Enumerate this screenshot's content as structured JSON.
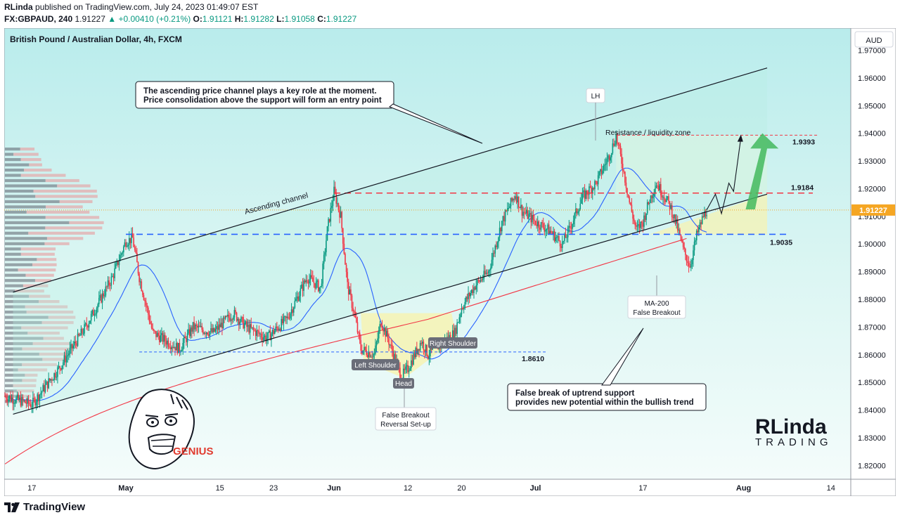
{
  "header": {
    "publisher": "RLinda",
    "published_text": "published on TradingView.com, July 24, 2023 01:49:07 EST",
    "symbol": "FX:GBPAUD, 240",
    "last": "1.91227",
    "change": "+0.00410 (+0.21%)",
    "o_label": "O:",
    "o": "1.91121",
    "h_label": "H:",
    "h": "1.91282",
    "l_label": "L:",
    "l": "1.91058",
    "c_label": "C:",
    "c": "1.91227"
  },
  "chart_title": "British Pound / Australian Dollar, 4h, FXCM",
  "currency_label": "AUD",
  "footer": {
    "brand": "TradingView"
  },
  "colors": {
    "up": "#089981",
    "down": "#f23645",
    "ma50": "#2962ff",
    "ma200": "#f23645",
    "price_tag": "#f5a623"
  },
  "chart_data": {
    "type": "candlestick",
    "ylim": [
      1.815,
      1.978
    ],
    "y_ticks": [
      "1.97000",
      "1.96000",
      "1.95000",
      "1.94000",
      "1.93000",
      "1.92000",
      "1.91000",
      "1.90000",
      "1.89000",
      "1.88000",
      "1.87000",
      "1.86000",
      "1.85000",
      "1.84000",
      "1.83000",
      "1.82000"
    ],
    "x_ticks": [
      {
        "label": "17",
        "day": -14
      },
      {
        "label": "May",
        "day": 0
      },
      {
        "label": "15",
        "day": 14
      },
      {
        "label": "23",
        "day": 22
      },
      {
        "label": "Jun",
        "day": 31
      },
      {
        "label": "12",
        "day": 42
      },
      {
        "label": "20",
        "day": 50
      },
      {
        "label": "Jul",
        "day": 61
      },
      {
        "label": "17",
        "day": 77
      },
      {
        "label": "Aug",
        "day": 92
      },
      {
        "label": "14",
        "day": 105
      }
    ],
    "price_key_points": [
      [
        -18,
        1.845
      ],
      [
        -14,
        1.842
      ],
      [
        -10,
        1.855
      ],
      [
        -6,
        1.87
      ],
      [
        -2,
        1.888
      ],
      [
        0,
        1.901
      ],
      [
        1,
        1.902
      ],
      [
        2,
        1.888
      ],
      [
        4,
        1.868
      ],
      [
        8,
        1.862
      ],
      [
        10,
        1.87
      ],
      [
        13,
        1.868
      ],
      [
        16,
        1.875
      ],
      [
        18,
        1.87
      ],
      [
        21,
        1.866
      ],
      [
        24,
        1.873
      ],
      [
        27,
        1.888
      ],
      [
        29,
        1.884
      ],
      [
        30,
        1.905
      ],
      [
        31,
        1.919
      ],
      [
        32,
        1.91
      ],
      [
        33,
        1.885
      ],
      [
        34,
        1.875
      ],
      [
        35,
        1.862
      ],
      [
        37,
        1.86
      ],
      [
        38,
        1.872
      ],
      [
        39,
        1.866
      ],
      [
        41,
        1.852
      ],
      [
        42,
        1.855
      ],
      [
        44,
        1.865
      ],
      [
        45,
        1.86
      ],
      [
        47,
        1.864
      ],
      [
        49,
        1.868
      ],
      [
        50,
        1.877
      ],
      [
        52,
        1.885
      ],
      [
        54,
        1.89
      ],
      [
        56,
        1.908
      ],
      [
        58,
        1.918
      ],
      [
        59,
        1.912
      ],
      [
        61,
        1.908
      ],
      [
        63,
        1.905
      ],
      [
        65,
        1.9
      ],
      [
        66,
        1.905
      ],
      [
        68,
        1.917
      ],
      [
        70,
        1.922
      ],
      [
        72,
        1.932
      ],
      [
        73,
        1.939
      ],
      [
        74,
        1.928
      ],
      [
        75,
        1.915
      ],
      [
        76,
        1.905
      ],
      [
        77,
        1.908
      ],
      [
        78,
        1.916
      ],
      [
        79,
        1.922
      ],
      [
        80,
        1.918
      ],
      [
        81,
        1.914
      ],
      [
        82,
        1.907
      ],
      [
        83,
        1.898
      ],
      [
        84,
        1.892
      ],
      [
        85,
        1.903
      ],
      [
        86,
        1.91
      ],
      [
        86.5,
        1.9123
      ]
    ],
    "levels": [
      {
        "name": "resistance",
        "value": 1.9393,
        "label": "1.9393"
      },
      {
        "name": "key-level",
        "value": 1.9184,
        "label": "1.9184"
      },
      {
        "name": "support",
        "value": 1.9035,
        "label": "1.9035"
      },
      {
        "name": "neckline",
        "value": 1.861,
        "label": "1.8610"
      }
    ],
    "last_price": {
      "value": 1.91227,
      "label": "1.91227"
    },
    "annotations": {
      "note1_line1": "The ascending price channel plays a key role at the moment.",
      "note1_line2": "Price consolidation above the support will form an entry point",
      "channel_label": "Ascending channel",
      "lh": "LH",
      "zone": "Resistance / liquidity zone",
      "left_shoulder": "Left Shoulder",
      "head": "Head",
      "right_shoulder": "Right Shoulder",
      "false_breakout_1": "False Breakout",
      "false_breakout_2": "Reversal Set-up",
      "ma200_1": "MA-200",
      "ma200_2": "False Breakout",
      "note2_line1": "False break of uptrend support",
      "note2_line2": "provides new potential within the bullish trend",
      "genius": "GENIUS",
      "logo_line1": "RLinda",
      "logo_line2": "TRADING"
    }
  }
}
